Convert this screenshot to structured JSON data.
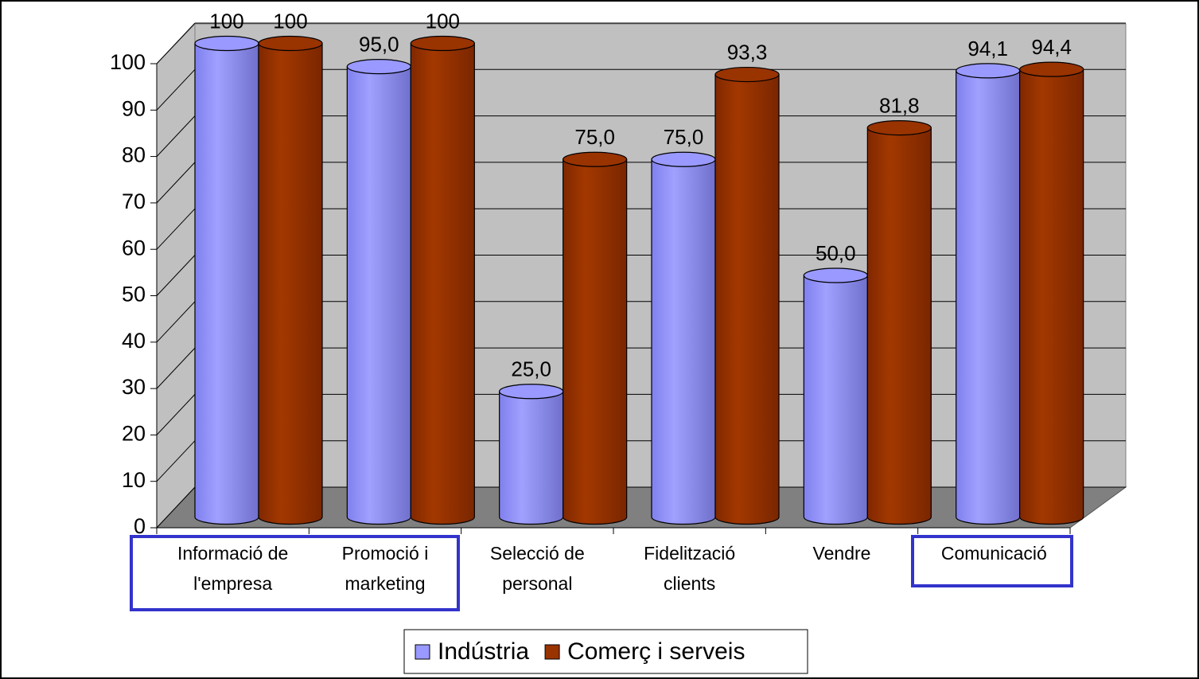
{
  "chart_data": {
    "type": "bar3d",
    "categories": [
      "Informació de\nl'empresa",
      "Promoció i\nmarketing",
      "Selecció de\npersonal",
      "Fidelització\nclients",
      "Vendre",
      "Comunicació"
    ],
    "series": [
      {
        "name": "Indústria",
        "color": "#9999ff",
        "values": [
          100,
          95,
          25,
          75,
          50,
          94.1
        ],
        "value_labels": [
          "100",
          "95,0",
          "25,0",
          "75,0",
          "50,0",
          "94,1"
        ]
      },
      {
        "name": "Comerç i serveis",
        "color": "#993300",
        "values": [
          100,
          100,
          75,
          93.3,
          81.8,
          94.4
        ],
        "value_labels": [
          "100",
          "100",
          "75,0",
          "93,3",
          "81,8",
          "94,4"
        ]
      }
    ],
    "ylim": [
      0,
      100
    ],
    "yticks": [
      0,
      10,
      20,
      30,
      40,
      50,
      60,
      70,
      80,
      90,
      100
    ],
    "grid": true
  }
}
